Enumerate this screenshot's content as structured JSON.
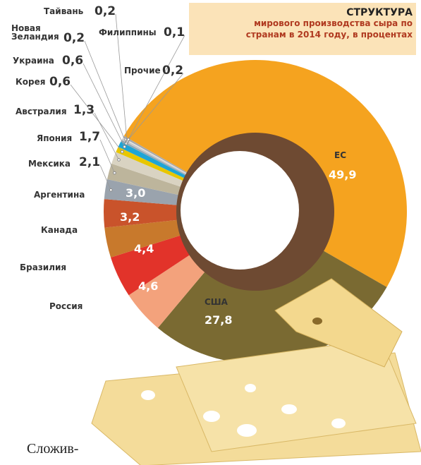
{
  "chart_data": {
    "type": "donut",
    "title": "СТРУКТУРА",
    "subtitle": "мирового производства сыра по странам в 2014 году, в процентах",
    "categories": [
      "ЕС",
      "США",
      "Россия",
      "Бразилия",
      "Канада",
      "Аргентина",
      "Мексика",
      "Япония",
      "Австралия",
      "Корея",
      "Украина",
      "Новая Зеландия",
      "Тайвань",
      "Филиппины",
      "Прочие"
    ],
    "values": [
      49.9,
      27.8,
      4.6,
      4.4,
      3.2,
      3.0,
      2.1,
      1.7,
      1.3,
      0.6,
      0.6,
      0.2,
      0.2,
      0.1,
      0.2
    ],
    "value_labels": [
      "49,9",
      "27,8",
      "4,6",
      "4,4",
      "3,2",
      "3,0",
      "2,1",
      "1,7",
      "1,3",
      "0,6",
      "0,6",
      "0,2",
      "0,2",
      "0,1",
      "0,2"
    ],
    "colors": [
      "#f5a31f",
      "#7a6a32",
      "#f3a27c",
      "#e2332a",
      "#c8792c",
      "#c9532b",
      "#9aa3ad",
      "#bdb59c",
      "#d9d3c2",
      "#e8c600",
      "#1ea5d6",
      "#8fa8b8",
      "#c9c9c9",
      "#e8e8e8",
      "#a9a9a9"
    ],
    "footer": "Сложив-"
  }
}
